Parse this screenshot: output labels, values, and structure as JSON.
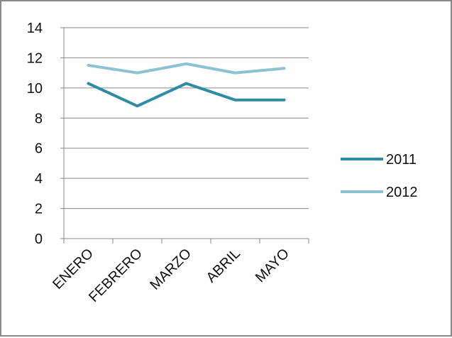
{
  "chart_data": {
    "type": "line",
    "title": "",
    "xlabel": "",
    "ylabel": "",
    "categories": [
      "ENERO",
      "FEBRERO",
      "MARZO",
      "ABRIL",
      "MAYO"
    ],
    "ylim": [
      0,
      14
    ],
    "yticks": [
      0,
      2,
      4,
      6,
      8,
      10,
      12,
      14
    ],
    "grid": true,
    "legend_position": "right",
    "series": [
      {
        "name": "2011",
        "color": "#2e8ca4",
        "values": [
          10.3,
          8.8,
          10.3,
          9.2,
          9.2
        ]
      },
      {
        "name": "2012",
        "color": "#8cc3d4",
        "values": [
          11.5,
          11.0,
          11.6,
          11.0,
          11.3
        ]
      }
    ]
  }
}
